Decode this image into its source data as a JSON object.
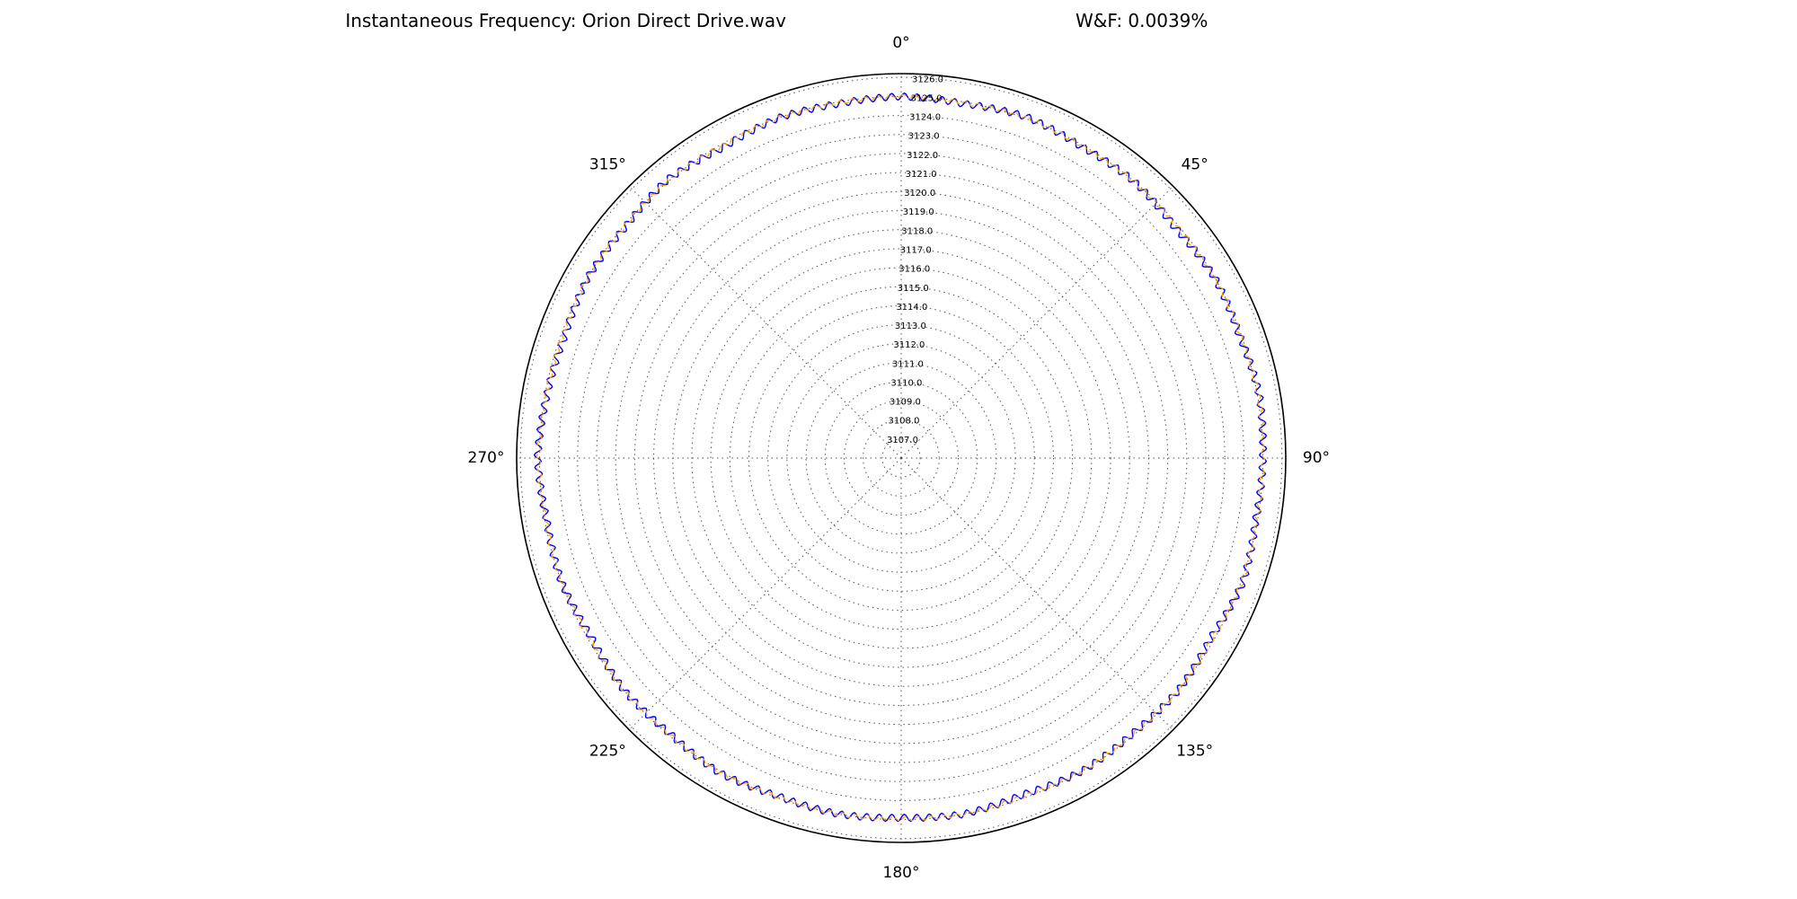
{
  "chart_data": {
    "type": "line",
    "projection": "polar",
    "title": "Instantaneous Frequency: Orion Direct Drive.wav",
    "metric": "W&F: 0.0039%",
    "theta_zero": "top",
    "theta_direction": "clockwise",
    "theta_ticks": [
      "0°",
      "45°",
      "90°",
      "135°",
      "180°",
      "225°",
      "270°",
      "315°"
    ],
    "r_ticks": [
      "3107.0",
      "3108.0",
      "3109.0",
      "3110.0",
      "3111.0",
      "3112.0",
      "3113.0",
      "3114.0",
      "3115.0",
      "3116.0",
      "3117.0",
      "3118.0",
      "3119.0",
      "3120.0",
      "3121.0",
      "3122.0",
      "3123.0",
      "3124.0",
      "3125.0",
      "3126.0"
    ],
    "r_lim": [
      3106.0,
      3126.2
    ],
    "r_tick_label_angle_deg": 4,
    "grid": true,
    "legend": "none",
    "series": [
      {
        "color": "#0000ff",
        "style": "solid",
        "theta_deg": [
          0,
          10,
          20,
          30,
          40,
          50,
          60,
          70,
          80,
          90,
          100,
          110,
          120,
          130,
          140,
          150,
          160,
          170,
          180,
          190,
          200,
          210,
          220,
          230,
          240,
          250,
          260,
          270,
          280,
          290,
          300,
          310,
          320,
          330,
          340,
          350
        ],
        "r": [
          3125.0,
          3124.9,
          3125.1,
          3124.9,
          3125.0,
          3124.8,
          3125.0,
          3124.9,
          3125.1,
          3125.0,
          3124.9,
          3125.1,
          3124.8,
          3125.0,
          3124.9,
          3125.0,
          3124.8,
          3125.0,
          3124.9,
          3125.0,
          3124.9,
          3125.1,
          3124.9,
          3125.0,
          3124.8,
          3125.0,
          3124.9,
          3125.1,
          3124.9,
          3124.8,
          3125.0,
          3124.9,
          3125.1,
          3124.8,
          3125.0,
          3124.9
        ],
        "ripple_amplitude": 0.18,
        "ripple_cycles_per_rev": 180
      },
      {
        "color": "#ffa500",
        "style": "dashed",
        "theta_deg": [
          0,
          10,
          20,
          30,
          40,
          50,
          60,
          70,
          80,
          90,
          100,
          110,
          120,
          130,
          140,
          150,
          160,
          170,
          180,
          190,
          200,
          210,
          220,
          230,
          240,
          250,
          260,
          270,
          280,
          290,
          300,
          310,
          320,
          330,
          340,
          350
        ],
        "r": [
          3125.0,
          3124.95,
          3125.05,
          3124.95,
          3125.0,
          3124.9,
          3125.0,
          3124.95,
          3125.05,
          3125.0,
          3124.95,
          3125.05,
          3124.9,
          3125.0,
          3124.95,
          3125.0,
          3124.9,
          3125.0,
          3124.95,
          3125.0,
          3124.95,
          3125.05,
          3124.95,
          3125.0,
          3124.9,
          3125.0,
          3124.95,
          3125.05,
          3124.95,
          3124.9,
          3125.0,
          3124.95,
          3125.05,
          3124.9,
          3125.0,
          3124.95
        ],
        "ripple_amplitude": 0.1,
        "ripple_cycles_per_rev": 180
      }
    ]
  }
}
